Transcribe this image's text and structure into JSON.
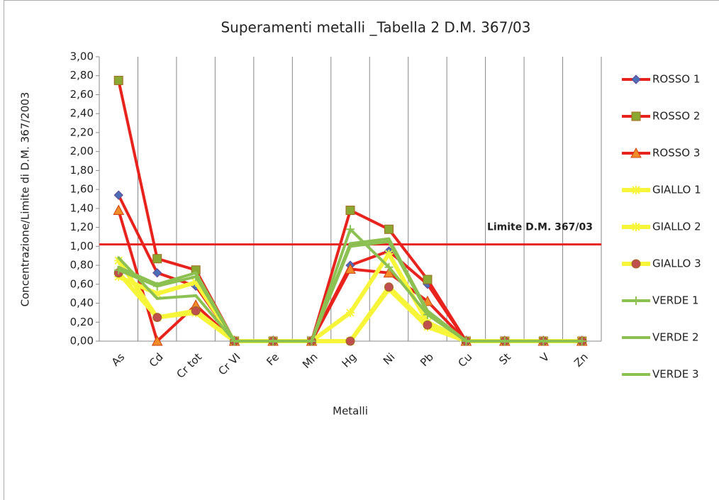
{
  "chart_data": {
    "type": "line",
    "title": "Superamenti metalli _Tabella 2 D.M. 367/03",
    "x_label": "Metalli",
    "y_label": "Concentrazione/Limite di D.M. 367/2003",
    "categories": [
      "As",
      "Cd",
      "Cr tot",
      "Cr VI",
      "Fe",
      "Mn",
      "Hg",
      "Ni",
      "Pb",
      "Cu",
      "St",
      "V",
      "Zn"
    ],
    "ylim": [
      0,
      3
    ],
    "yticks": [
      {
        "value": 0,
        "label": "0,00"
      },
      {
        "value": 0.2,
        "label": "0,20"
      },
      {
        "value": 0.4,
        "label": "0,40"
      },
      {
        "value": 0.6,
        "label": "0,60"
      },
      {
        "value": 0.8,
        "label": "0,80"
      },
      {
        "value": 1,
        "label": "1,00"
      },
      {
        "value": 1.2,
        "label": "1,20"
      },
      {
        "value": 1.4,
        "label": "1,40"
      },
      {
        "value": 1.6,
        "label": "1,60"
      },
      {
        "value": 1.8,
        "label": "1,80"
      },
      {
        "value": 2,
        "label": "2,00"
      },
      {
        "value": 2.2,
        "label": "2,20"
      },
      {
        "value": 2.4,
        "label": "2,40"
      },
      {
        "value": 2.6,
        "label": "2,60"
      },
      {
        "value": 2.8,
        "label": "2,80"
      },
      {
        "value": 3,
        "label": "3,00"
      }
    ],
    "grid": "vertical",
    "legend": "right",
    "reference_line": {
      "label": "Limite D.M. 367/03",
      "value": 1.02,
      "color": "#e8231d"
    },
    "series": [
      {
        "name": "ROSSO 1",
        "color": "#e8231d",
        "marker": "diamond",
        "marker_color": "#4a6fb5",
        "values": [
          1.54,
          0.72,
          0.58,
          0,
          0,
          0,
          0.8,
          0.95,
          0.6,
          0,
          0,
          0,
          0
        ]
      },
      {
        "name": "ROSSO 2",
        "color": "#e8231d",
        "marker": "square",
        "marker_color": "#8aa832",
        "values": [
          2.75,
          0.87,
          0.75,
          0,
          0,
          0,
          1.38,
          1.18,
          0.65,
          0,
          0,
          0,
          0
        ]
      },
      {
        "name": "ROSSO 3",
        "color": "#e8231d",
        "marker": "triangle",
        "marker_color": "#f28c28",
        "values": [
          1.38,
          0,
          0.38,
          0,
          0,
          0,
          0.76,
          0.72,
          0.42,
          0,
          0,
          0,
          0
        ]
      },
      {
        "name": "GIALLO 1",
        "color": "#f7f53a",
        "marker": "star",
        "marker_color": "#f7f53a",
        "values": [
          0.68,
          0.5,
          0.62,
          0,
          0,
          0,
          0.3,
          0.92,
          0.2,
          0,
          0,
          0,
          0
        ]
      },
      {
        "name": "GIALLO 2",
        "color": "#f7f53a",
        "marker": "star",
        "marker_color": "#f7f53a",
        "values": [
          0.85,
          0.25,
          0.3,
          0,
          0,
          0,
          0,
          0.55,
          0.15,
          0,
          0,
          0,
          0
        ]
      },
      {
        "name": "GIALLO 3",
        "color": "#f7f53a",
        "marker": "circle",
        "marker_color": "#c0504d",
        "values": [
          0.72,
          0.25,
          0.32,
          0,
          0,
          0,
          0,
          0.57,
          0.17,
          0,
          0,
          0,
          0
        ]
      },
      {
        "name": "VERDE 1",
        "color": "#8cc152",
        "marker": "plus",
        "marker_color": "#8cc152",
        "values": [
          0.75,
          0.58,
          0.68,
          0,
          0,
          0,
          1.18,
          0.78,
          0.28,
          0,
          0,
          0,
          0
        ]
      },
      {
        "name": "VERDE 2",
        "color": "#8cc152",
        "marker": "none",
        "marker_color": "#8cc152",
        "values": [
          0.88,
          0.45,
          0.48,
          0,
          0,
          0,
          1,
          1.05,
          0.3,
          0,
          0,
          0,
          0
        ]
      },
      {
        "name": "VERDE 3",
        "color": "#8cc152",
        "marker": "none",
        "marker_color": "#8cc152",
        "values": [
          0.78,
          0.6,
          0.72,
          0,
          0,
          0,
          1.03,
          1.08,
          0.32,
          0,
          0,
          0,
          0
        ]
      }
    ]
  }
}
